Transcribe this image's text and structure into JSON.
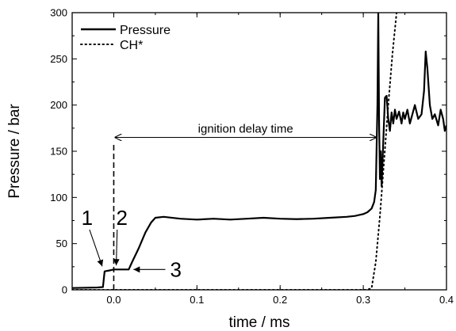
{
  "chart_data": {
    "type": "line",
    "xlabel": "time / ms",
    "ylabel": "Pressure / bar",
    "xlim": [
      -0.05,
      0.4
    ],
    "ylim": [
      0,
      300
    ],
    "x_ticks": [
      0.0,
      0.1,
      0.2,
      0.3,
      0.4
    ],
    "x_tick_labels": [
      "0.0",
      "0.1",
      "0.2",
      "0.3",
      "0.4"
    ],
    "y_ticks": [
      0,
      50,
      100,
      150,
      200,
      250,
      300
    ],
    "y_tick_labels": [
      "0",
      "50",
      "100",
      "150",
      "200",
      "250",
      "300"
    ],
    "grid": false,
    "legend": {
      "position": "top-left"
    },
    "series": [
      {
        "name": "Pressure",
        "style": "solid",
        "color": "#000000",
        "points": [
          [
            -0.05,
            2
          ],
          [
            -0.02,
            2.5
          ],
          [
            -0.013,
            3
          ],
          [
            -0.011,
            20
          ],
          [
            -0.005,
            21
          ],
          [
            0.0,
            22
          ],
          [
            0.01,
            22
          ],
          [
            0.018,
            22
          ],
          [
            0.022,
            30
          ],
          [
            0.03,
            45
          ],
          [
            0.038,
            62
          ],
          [
            0.045,
            73
          ],
          [
            0.05,
            78
          ],
          [
            0.06,
            79
          ],
          [
            0.08,
            77
          ],
          [
            0.1,
            76
          ],
          [
            0.12,
            77
          ],
          [
            0.14,
            76
          ],
          [
            0.16,
            77
          ],
          [
            0.18,
            78
          ],
          [
            0.2,
            77
          ],
          [
            0.22,
            76.5
          ],
          [
            0.24,
            77
          ],
          [
            0.26,
            78
          ],
          [
            0.28,
            79
          ],
          [
            0.29,
            80
          ],
          [
            0.3,
            82
          ],
          [
            0.305,
            84
          ],
          [
            0.31,
            88
          ],
          [
            0.313,
            95
          ],
          [
            0.315,
            108
          ],
          [
            0.317,
            200
          ],
          [
            0.318,
            300
          ],
          [
            0.319,
            180
          ],
          [
            0.32,
            120
          ],
          [
            0.321,
            150
          ],
          [
            0.322,
            112
          ],
          [
            0.324,
            160
          ],
          [
            0.326,
            208
          ],
          [
            0.328,
            210
          ],
          [
            0.33,
            185
          ],
          [
            0.332,
            172
          ],
          [
            0.334,
            192
          ],
          [
            0.336,
            180
          ],
          [
            0.338,
            195
          ],
          [
            0.34,
            185
          ],
          [
            0.343,
            193
          ],
          [
            0.346,
            180
          ],
          [
            0.348,
            192
          ],
          [
            0.35,
            185
          ],
          [
            0.353,
            195
          ],
          [
            0.356,
            180
          ],
          [
            0.359,
            190
          ],
          [
            0.362,
            200
          ],
          [
            0.366,
            185
          ],
          [
            0.37,
            190
          ],
          [
            0.373,
            215
          ],
          [
            0.375,
            258
          ],
          [
            0.377,
            240
          ],
          [
            0.38,
            200
          ],
          [
            0.383,
            185
          ],
          [
            0.386,
            190
          ],
          [
            0.39,
            178
          ],
          [
            0.393,
            195
          ],
          [
            0.396,
            185
          ],
          [
            0.398,
            172
          ],
          [
            0.4,
            178
          ]
        ]
      },
      {
        "name": "CH*",
        "style": "dotted",
        "color": "#000000",
        "points": [
          [
            -0.05,
            0
          ],
          [
            0.305,
            0
          ],
          [
            0.31,
            2
          ],
          [
            0.315,
            30
          ],
          [
            0.32,
            80
          ],
          [
            0.325,
            140
          ],
          [
            0.33,
            200
          ],
          [
            0.335,
            255
          ],
          [
            0.34,
            300
          ]
        ]
      }
    ],
    "annotations": {
      "ignition_delay": {
        "text": "ignition delay time",
        "x_start": 0.0,
        "x_end": 0.317,
        "y": 165
      },
      "vline": {
        "x": 0.0,
        "y_top": 157
      },
      "points": [
        {
          "label": "1",
          "arrow_to": [
            -0.011,
            22
          ],
          "text_at": [
            -0.032,
            78
          ]
        },
        {
          "label": "2",
          "arrow_to": [
            0.002,
            23
          ],
          "text_at": [
            0.006,
            78
          ]
        },
        {
          "label": "3",
          "arrow_to": [
            0.018,
            22
          ],
          "text_at": [
            0.062,
            22
          ]
        }
      ]
    }
  }
}
